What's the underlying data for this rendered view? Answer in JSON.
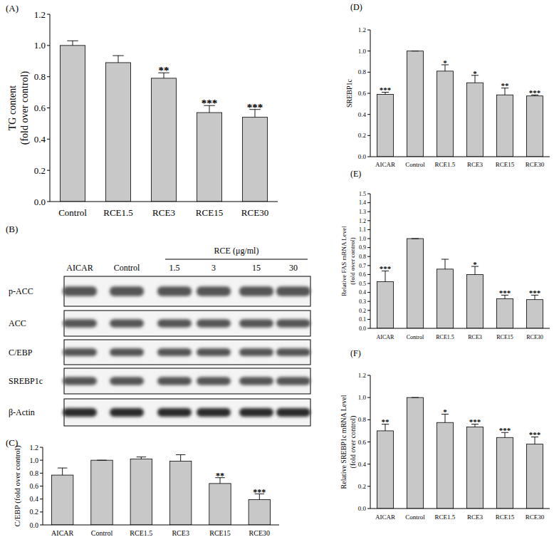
{
  "chart_data": [
    {
      "type": "bar",
      "title": "(A)",
      "y_label": [
        "TG content",
        "(fold over control)"
      ],
      "categories": [
        "Control",
        "RCE1.5",
        "RCE3",
        "RCE15",
        "RCE30"
      ],
      "values": [
        1.0,
        0.89,
        0.79,
        0.57,
        0.54
      ],
      "errors": [
        0.03,
        0.045,
        0.035,
        0.045,
        0.05
      ],
      "annotations": [
        null,
        null,
        "**",
        "***",
        "***"
      ],
      "color": "#c8c8c8",
      "grid": false,
      "ylim": [
        0,
        1.2
      ],
      "yticks": [
        {
          "value": 0,
          "label": "0.0"
        },
        0.2,
        0.4,
        0.6,
        0.8,
        {
          "value": 1,
          "label": "1.0"
        },
        1.2
      ]
    },
    {
      "type": "bar",
      "title": "(C)",
      "y_label": [
        "C/EBP (fold over control)"
      ],
      "categories": [
        "AICAR",
        "Control",
        "RCE1.5",
        "RCE3",
        "RCE15",
        "RCE30"
      ],
      "values": [
        0.77,
        1.0,
        1.02,
        0.985,
        0.64,
        0.39
      ],
      "errors": [
        0.11,
        0,
        0.03,
        0.1,
        0.09,
        0.09
      ],
      "annotations": [
        null,
        null,
        null,
        null,
        "**",
        "***"
      ],
      "color": "#c8c8c8",
      "grid": false,
      "ylim": [
        0,
        1.2
      ],
      "yticks": [
        {
          "value": 0,
          "label": "0.0"
        },
        0.2,
        0.4,
        0.6,
        0.8,
        {
          "value": 1,
          "label": "1.0"
        },
        1.2
      ]
    },
    {
      "type": "bar",
      "title": "(D)",
      "y_label": [
        "SREBP1c"
      ],
      "categories": [
        "AICAR",
        "Control",
        "RCE1.5",
        "RCE3",
        "RCE15",
        "RCE30"
      ],
      "values": [
        0.59,
        1.0,
        0.81,
        0.7,
        0.585,
        0.575
      ],
      "errors": [
        0.02,
        0,
        0.06,
        0.07,
        0.065,
        0.01
      ],
      "annotations": [
        "***",
        null,
        "*",
        "*",
        "**",
        "***"
      ],
      "color": "#c8c8c8",
      "grid": false,
      "ylim": [
        0,
        1.2
      ],
      "yticks": [
        {
          "value": 0,
          "label": "0.0"
        },
        0.2,
        0.4,
        0.6,
        0.8,
        {
          "value": 1,
          "label": "1.0"
        },
        1.2
      ]
    },
    {
      "type": "bar",
      "title": "(E)",
      "y_label": [
        "Relative FAS mRNA Level",
        "(fold over control)"
      ],
      "categories": [
        "AICAR",
        "Control",
        "RCE1.5",
        "RCE3",
        "RCE15",
        "RCE30"
      ],
      "values": [
        0.52,
        1.0,
        0.66,
        0.6,
        0.33,
        0.32
      ],
      "errors": [
        0.12,
        0,
        0.11,
        0.09,
        0.04,
        0.05
      ],
      "annotations": [
        "***",
        null,
        null,
        "*",
        "***",
        "***"
      ],
      "color": "#c8c8c8",
      "grid": false,
      "ylim": [
        0,
        1.5
      ],
      "yticks": [
        {
          "value": 0,
          "label": "0.0"
        },
        0.1,
        0.2,
        0.3,
        0.4,
        0.5,
        0.6,
        0.7,
        0.8,
        0.9,
        {
          "value": 1,
          "label": "1.0"
        },
        1.1,
        1.2,
        1.3,
        1.4,
        1.5
      ]
    },
    {
      "type": "bar",
      "title": "(F)",
      "y_label": [
        "Relative SREBP1c mRNA Level",
        "(fold over control)"
      ],
      "categories": [
        "AICAR",
        "Control",
        "RCE1.5",
        "RCE3",
        "RCE15",
        "RCE30"
      ],
      "values": [
        0.7,
        1.0,
        0.775,
        0.735,
        0.64,
        0.58
      ],
      "errors": [
        0.06,
        0,
        0.075,
        0.025,
        0.045,
        0.065
      ],
      "annotations": [
        "**",
        null,
        "*",
        "***",
        "***",
        "***"
      ],
      "color": "#c8c8c8",
      "grid": false,
      "ylim": [
        0,
        1.2
      ],
      "yticks": [
        {
          "value": 0,
          "label": "0.0"
        },
        0.2,
        0.4,
        0.6,
        0.8,
        {
          "value": 1,
          "label": "1.0"
        },
        1.2
      ]
    }
  ],
  "blot": {
    "title": "(B)",
    "group_label": "RCE (μg/ml)",
    "columns": [
      "AICAR",
      "Control",
      "1.5",
      "3",
      "15",
      "30"
    ],
    "rows": [
      "p-ACC",
      "ACC",
      "C/EBP",
      "SREBP1c",
      "β-Actin"
    ]
  }
}
